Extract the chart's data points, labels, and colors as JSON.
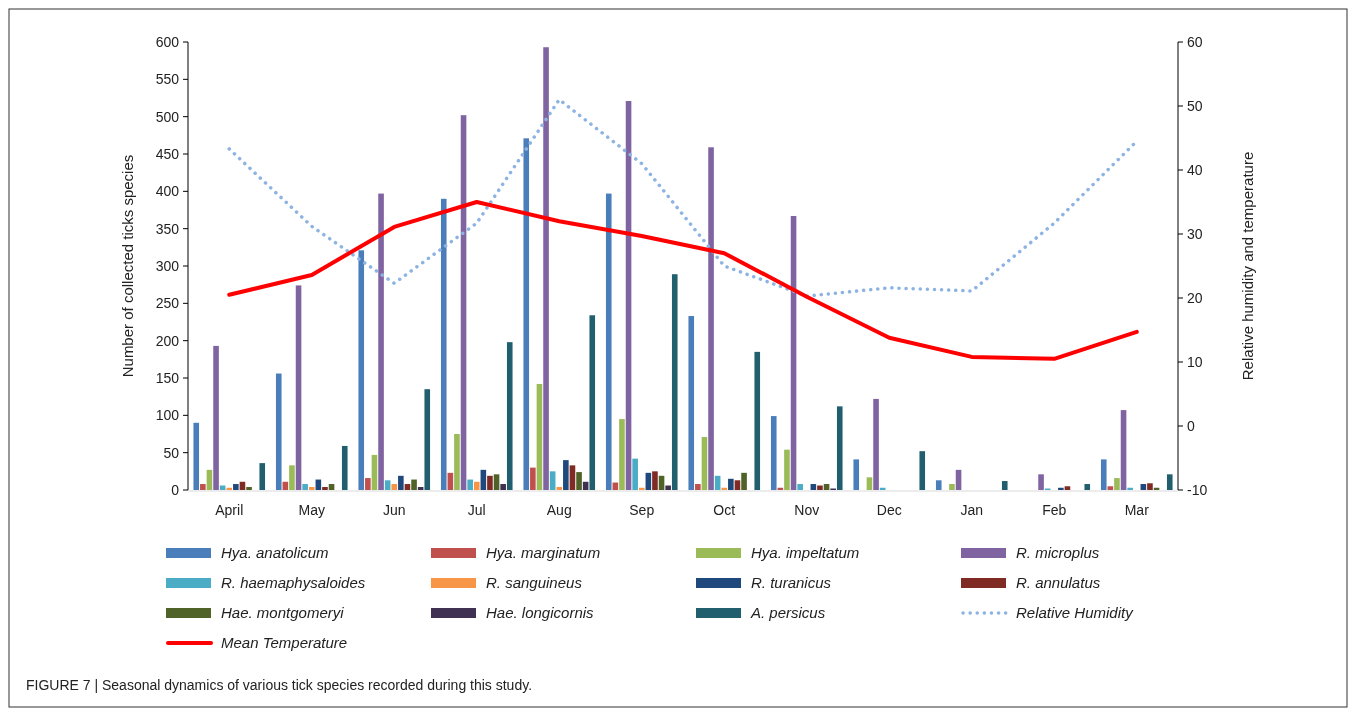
{
  "chart_data": {
    "type": "bar",
    "ylabel": "Number of collected ticks species",
    "y2label": "Relative humidity and temperature",
    "categories": [
      "April",
      "May",
      "Jun",
      "Jul",
      "Aug",
      "Sep",
      "Oct",
      "Nov",
      "Dec",
      "Jan",
      "Feb",
      "Mar"
    ],
    "ylim": [
      0,
      600
    ],
    "yticks": [
      0,
      50,
      100,
      150,
      200,
      250,
      300,
      350,
      400,
      450,
      500,
      550,
      600
    ],
    "y2lim": [
      -10,
      60
    ],
    "y2ticks": [
      -10,
      0,
      10,
      20,
      30,
      40,
      50,
      60
    ],
    "legend": "bottom",
    "grid": false,
    "annotations": [
      "FIGURE 7 | Seasonal dynamics of various tick species recorded during this study."
    ],
    "series": [
      {
        "name": "Hya. anatolicum",
        "color": "#4a7ebb",
        "values": [
          90,
          156,
          321,
          390,
          471,
          397,
          233,
          99,
          41,
          13,
          0,
          41
        ]
      },
      {
        "name": "Hya. marginatum",
        "color": "#c0504d",
        "values": [
          8,
          11,
          16,
          23,
          30,
          10,
          8,
          3,
          0,
          0,
          0,
          5
        ]
      },
      {
        "name": "Hya. impeltatum",
        "color": "#9bbb59",
        "values": [
          27,
          33,
          47,
          75,
          142,
          95,
          71,
          54,
          17,
          8,
          0,
          16
        ]
      },
      {
        "name": "R. microplus",
        "color": "#8064a2",
        "values": [
          193,
          274,
          397,
          502,
          593,
          521,
          459,
          367,
          122,
          27,
          21,
          107
        ]
      },
      {
        "name": "R. haemaphysaloides",
        "color": "#4bacc6",
        "values": [
          6,
          8,
          13,
          14,
          25,
          42,
          19,
          8,
          3,
          0,
          2,
          3
        ]
      },
      {
        "name": "R. sanguineus",
        "color": "#f79646",
        "values": [
          3,
          4,
          8,
          11,
          4,
          3,
          3,
          0,
          0,
          0,
          0,
          0
        ]
      },
      {
        "name": "R. turanicus",
        "color": "#1f497d",
        "values": [
          8,
          14,
          19,
          27,
          40,
          23,
          15,
          8,
          0,
          0,
          3,
          8
        ]
      },
      {
        "name": "R. annulatus",
        "color": "#7f2a23",
        "values": [
          11,
          4,
          8,
          19,
          33,
          25,
          13,
          6,
          0,
          0,
          5,
          9
        ]
      },
      {
        "name": "Hae. montgomeryi",
        "color": "#4f6228",
        "values": [
          4,
          8,
          14,
          21,
          24,
          19,
          23,
          8,
          0,
          0,
          0,
          3
        ]
      },
      {
        "name": "Hae. longicornis",
        "color": "#403152",
        "values": [
          0,
          0,
          4,
          8,
          11,
          6,
          0,
          2,
          0,
          0,
          0,
          0
        ]
      },
      {
        "name": "A. persicus",
        "color": "#215e6e",
        "values": [
          36,
          59,
          135,
          198,
          234,
          289,
          185,
          112,
          52,
          12,
          8,
          21
        ]
      },
      {
        "name": "Relative Humidity",
        "type": "line",
        "axis": "y2",
        "line_style": "dotted",
        "color": "#8db3e2",
        "values": [
          43.3,
          31.2,
          22.3,
          31.7,
          51,
          41,
          25,
          20.3,
          21.6,
          21.1,
          31.7,
          44.5
        ]
      },
      {
        "name": "Mean Temperature",
        "type": "line",
        "axis": "y2",
        "line_style": "solid",
        "color": "#ff0000",
        "values": [
          20.5,
          23.6,
          31.1,
          35,
          32,
          29.7,
          27,
          20.2,
          13.8,
          10.8,
          10.5,
          14.7
        ]
      }
    ]
  }
}
